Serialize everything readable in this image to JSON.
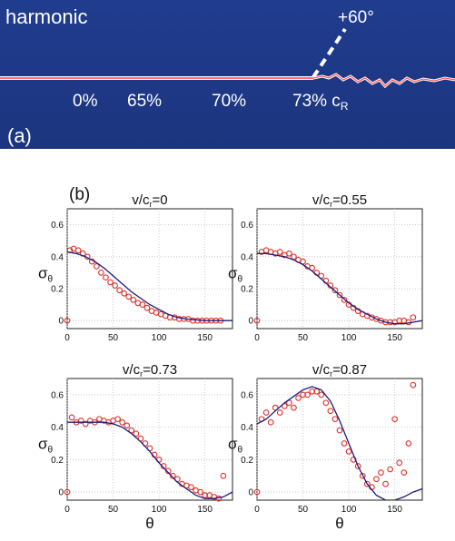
{
  "panel_a": {
    "label": "(a)",
    "title": "harmonic",
    "angle_label": "+60°",
    "speed_labels": [
      "0%",
      "65%",
      "70%",
      "73% c"
    ],
    "speed_label_subscript": "R",
    "colors": {
      "background": "#1f3b8c",
      "crack": "#ff3b3b",
      "text": "#ffffff"
    }
  },
  "panel_b": {
    "label": "(b)",
    "subplot_titles": [
      {
        "base": "v/c",
        "sub": "r",
        "rest": "=0"
      },
      {
        "base": "v/c",
        "sub": "r",
        "rest": "=0.55"
      },
      {
        "base": "v/c",
        "sub": "r",
        "rest": "=0.73"
      },
      {
        "base": "v/c",
        "sub": "r",
        "rest": "=0.87"
      }
    ],
    "ylabel": {
      "base": "σ",
      "sub": "θ"
    },
    "xlabel": "θ"
  },
  "chart_data": [
    {
      "type": "scatter",
      "title": "v/c_r=0",
      "xlim": [
        0,
        180
      ],
      "ylim": [
        -0.05,
        0.7
      ],
      "xticks": [
        "0",
        "50",
        "100",
        "150"
      ],
      "yticks": [
        "0",
        "0.2",
        "0.4",
        "0.6"
      ],
      "grid": true,
      "series": [
        {
          "kind": "points",
          "color": "#e0302a",
          "x": [
            0,
            3,
            7,
            12,
            17,
            22,
            27,
            32,
            37,
            42,
            47,
            52,
            57,
            62,
            67,
            72,
            77,
            82,
            87,
            92,
            97,
            102,
            107,
            112,
            117,
            122,
            127,
            132,
            137,
            142,
            147,
            152,
            157,
            162,
            167
          ],
          "y": [
            0,
            0.44,
            0.45,
            0.44,
            0.42,
            0.4,
            0.37,
            0.34,
            0.3,
            0.27,
            0.24,
            0.22,
            0.19,
            0.17,
            0.15,
            0.13,
            0.11,
            0.1,
            0.08,
            0.06,
            0.05,
            0.04,
            0.03,
            0.02,
            0.02,
            0.01,
            0.01,
            0.01,
            0,
            0,
            0,
            0,
            0,
            0,
            0
          ]
        },
        {
          "kind": "line",
          "color": "#1b1b7a",
          "x": [
            0,
            10,
            20,
            30,
            40,
            50,
            60,
            70,
            80,
            90,
            100,
            110,
            120,
            130,
            140,
            150,
            160,
            170,
            180
          ],
          "y": [
            0.43,
            0.42,
            0.4,
            0.37,
            0.33,
            0.28,
            0.23,
            0.18,
            0.14,
            0.1,
            0.07,
            0.04,
            0.02,
            0.01,
            0.005,
            0,
            0,
            0,
            0
          ]
        }
      ]
    },
    {
      "type": "scatter",
      "title": "v/c_r=0.55",
      "xlim": [
        0,
        180
      ],
      "ylim": [
        -0.05,
        0.7
      ],
      "xticks": [
        "0",
        "50",
        "100",
        "150"
      ],
      "yticks": [
        "0",
        "0.2",
        "0.4",
        "0.6"
      ],
      "grid": true,
      "series": [
        {
          "kind": "points",
          "color": "#e0302a",
          "x": [
            0,
            5,
            10,
            15,
            20,
            25,
            30,
            35,
            40,
            45,
            50,
            55,
            60,
            65,
            70,
            75,
            80,
            85,
            90,
            95,
            100,
            105,
            110,
            115,
            120,
            125,
            130,
            135,
            140,
            145,
            150,
            155,
            160,
            165,
            170
          ],
          "y": [
            0,
            0.43,
            0.44,
            0.43,
            0.42,
            0.43,
            0.41,
            0.42,
            0.4,
            0.38,
            0.37,
            0.34,
            0.33,
            0.3,
            0.28,
            0.25,
            0.22,
            0.19,
            0.16,
            0.13,
            0.1,
            0.08,
            0.06,
            0.04,
            0.03,
            0.02,
            0.01,
            0.0,
            -0.01,
            -0.01,
            -0.01,
            0,
            0,
            -0.01,
            0.02
          ]
        },
        {
          "kind": "line",
          "color": "#1b1b7a",
          "x": [
            0,
            10,
            20,
            30,
            40,
            50,
            60,
            70,
            80,
            90,
            100,
            110,
            120,
            130,
            140,
            150,
            160,
            170,
            180
          ],
          "y": [
            0.42,
            0.42,
            0.41,
            0.4,
            0.38,
            0.35,
            0.31,
            0.26,
            0.21,
            0.16,
            0.11,
            0.07,
            0.04,
            0.01,
            -0.01,
            -0.02,
            -0.02,
            -0.01,
            0
          ]
        }
      ]
    },
    {
      "type": "scatter",
      "title": "v/c_r=0.73",
      "xlim": [
        0,
        180
      ],
      "ylim": [
        -0.05,
        0.7
      ],
      "xticks": [
        "0",
        "50",
        "100",
        "150"
      ],
      "yticks": [
        "0",
        "0.2",
        "0.4",
        "0.6"
      ],
      "grid": true,
      "series": [
        {
          "kind": "points",
          "color": "#e0302a",
          "x": [
            0,
            5,
            10,
            15,
            20,
            25,
            30,
            35,
            40,
            45,
            50,
            55,
            60,
            65,
            70,
            75,
            80,
            85,
            90,
            95,
            100,
            105,
            110,
            115,
            120,
            125,
            130,
            135,
            140,
            145,
            150,
            155,
            160,
            165,
            170
          ],
          "y": [
            0,
            0.46,
            0.43,
            0.44,
            0.42,
            0.44,
            0.43,
            0.45,
            0.44,
            0.43,
            0.44,
            0.45,
            0.43,
            0.41,
            0.38,
            0.36,
            0.33,
            0.3,
            0.27,
            0.23,
            0.2,
            0.16,
            0.13,
            0.1,
            0.08,
            0.05,
            0.04,
            0.03,
            0.01,
            0.0,
            -0.02,
            -0.02,
            -0.03,
            -0.04,
            0.1
          ]
        },
        {
          "kind": "line",
          "color": "#1b1b7a",
          "x": [
            0,
            10,
            20,
            30,
            40,
            50,
            60,
            70,
            80,
            90,
            100,
            110,
            120,
            130,
            140,
            150,
            160,
            170,
            180
          ],
          "y": [
            0.43,
            0.43,
            0.43,
            0.43,
            0.43,
            0.42,
            0.4,
            0.36,
            0.31,
            0.25,
            0.18,
            0.12,
            0.06,
            0.02,
            -0.02,
            -0.04,
            -0.04,
            -0.03,
            0
          ]
        }
      ]
    },
    {
      "type": "scatter",
      "title": "v/c_r=0.87",
      "xlim": [
        0,
        180
      ],
      "ylim": [
        -0.05,
        0.7
      ],
      "xticks": [
        "0",
        "50",
        "100",
        "150"
      ],
      "yticks": [
        "0",
        "0.2",
        "0.4",
        "0.6"
      ],
      "grid": true,
      "series": [
        {
          "kind": "points",
          "color": "#e0302a",
          "x": [
            0,
            5,
            10,
            15,
            20,
            25,
            30,
            35,
            40,
            45,
            50,
            55,
            60,
            65,
            70,
            75,
            80,
            85,
            90,
            95,
            100,
            105,
            110,
            115,
            120,
            125,
            130,
            135,
            140,
            145,
            150,
            155,
            160,
            165,
            170
          ],
          "y": [
            0,
            0.45,
            0.49,
            0.43,
            0.52,
            0.49,
            0.53,
            0.55,
            0.52,
            0.58,
            0.6,
            0.6,
            0.62,
            0.62,
            0.6,
            0.55,
            0.5,
            0.45,
            0.38,
            0.3,
            0.25,
            0.2,
            0.16,
            0.1,
            0.05,
            0.03,
            0.08,
            0.12,
            0.05,
            0.14,
            0.45,
            0.18,
            0.12,
            0.3,
            0.66
          ]
        },
        {
          "kind": "line",
          "color": "#1b1b7a",
          "x": [
            0,
            10,
            20,
            30,
            40,
            50,
            60,
            70,
            80,
            90,
            100,
            110,
            120,
            130,
            140,
            150,
            160,
            170,
            180
          ],
          "y": [
            0.42,
            0.45,
            0.5,
            0.55,
            0.59,
            0.63,
            0.65,
            0.63,
            0.56,
            0.44,
            0.3,
            0.16,
            0.05,
            -0.02,
            -0.05,
            -0.05,
            -0.03,
            0.0,
            0.02
          ]
        }
      ]
    }
  ]
}
